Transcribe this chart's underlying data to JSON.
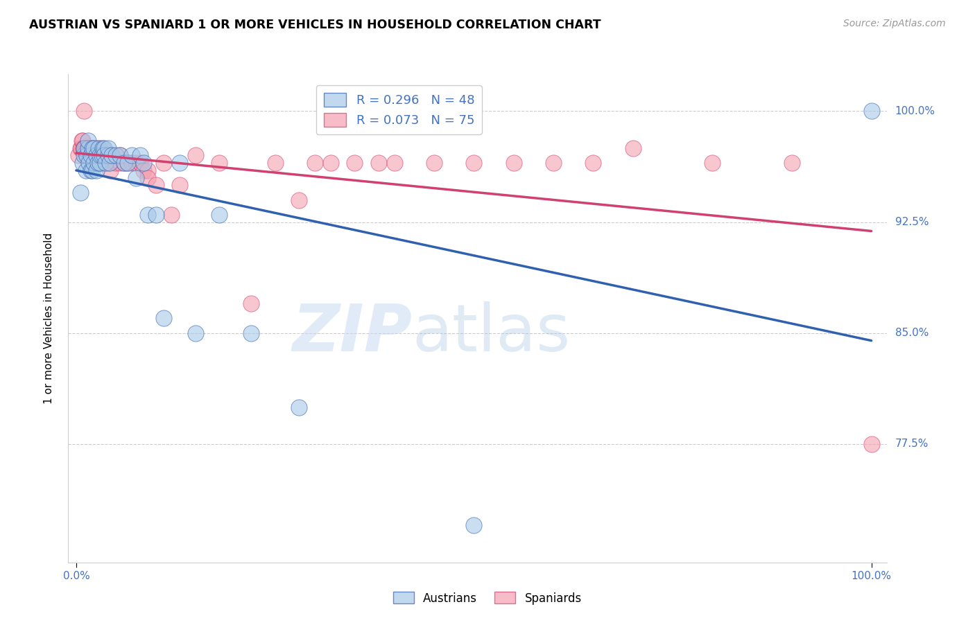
{
  "title": "AUSTRIAN VS SPANIARD 1 OR MORE VEHICLES IN HOUSEHOLD CORRELATION CHART",
  "source": "Source: ZipAtlas.com",
  "ylabel": "1 or more Vehicles in Household",
  "ytick_labels": [
    "100.0%",
    "92.5%",
    "85.0%",
    "77.5%"
  ],
  "ytick_values": [
    1.0,
    0.925,
    0.85,
    0.775
  ],
  "xlim": [
    0.0,
    1.0
  ],
  "ylim": [
    0.695,
    1.025
  ],
  "legend_blue_label": "R = 0.296   N = 48",
  "legend_pink_label": "R = 0.073   N = 75",
  "blue_color": "#a8c8e8",
  "pink_color": "#f4a0b0",
  "blue_line_color": "#3060b0",
  "pink_line_color": "#d04070",
  "background_color": "#ffffff",
  "watermark_zip": "ZIP",
  "watermark_atlas": "atlas",
  "blue_R": 0.296,
  "pink_R": 0.073,
  "blue_N": 48,
  "pink_N": 75,
  "austrians_x": [
    0.005,
    0.008,
    0.01,
    0.01,
    0.012,
    0.013,
    0.015,
    0.015,
    0.016,
    0.018,
    0.018,
    0.02,
    0.02,
    0.022,
    0.022,
    0.025,
    0.025,
    0.027,
    0.028,
    0.03,
    0.03,
    0.032,
    0.033,
    0.035,
    0.035,
    0.037,
    0.04,
    0.04,
    0.042,
    0.045,
    0.05,
    0.055,
    0.06,
    0.065,
    0.07,
    0.075,
    0.08,
    0.085,
    0.09,
    0.1,
    0.11,
    0.13,
    0.15,
    0.18,
    0.22,
    0.28,
    0.5,
    1.0
  ],
  "austrians_y": [
    0.945,
    0.965,
    0.97,
    0.975,
    0.96,
    0.97,
    0.975,
    0.98,
    0.965,
    0.97,
    0.96,
    0.975,
    0.96,
    0.975,
    0.965,
    0.97,
    0.96,
    0.965,
    0.975,
    0.965,
    0.97,
    0.97,
    0.975,
    0.975,
    0.97,
    0.965,
    0.97,
    0.975,
    0.965,
    0.97,
    0.97,
    0.97,
    0.965,
    0.965,
    0.97,
    0.955,
    0.97,
    0.965,
    0.93,
    0.93,
    0.86,
    0.965,
    0.85,
    0.93,
    0.85,
    0.8,
    0.72,
    1.0
  ],
  "spaniards_x": [
    0.003,
    0.005,
    0.006,
    0.007,
    0.008,
    0.009,
    0.01,
    0.01,
    0.011,
    0.012,
    0.012,
    0.013,
    0.014,
    0.015,
    0.016,
    0.016,
    0.017,
    0.018,
    0.018,
    0.019,
    0.02,
    0.02,
    0.022,
    0.022,
    0.023,
    0.024,
    0.025,
    0.025,
    0.027,
    0.028,
    0.03,
    0.03,
    0.032,
    0.033,
    0.035,
    0.037,
    0.04,
    0.04,
    0.042,
    0.043,
    0.045,
    0.05,
    0.055,
    0.055,
    0.06,
    0.065,
    0.07,
    0.075,
    0.08,
    0.085,
    0.09,
    0.09,
    0.1,
    0.11,
    0.12,
    0.13,
    0.15,
    0.18,
    0.22,
    0.25,
    0.28,
    0.3,
    0.32,
    0.35,
    0.38,
    0.4,
    0.45,
    0.5,
    0.55,
    0.6,
    0.65,
    0.7,
    0.8,
    0.9,
    1.0
  ],
  "spaniards_y": [
    0.97,
    0.975,
    0.975,
    0.98,
    0.98,
    0.975,
    1.0,
    0.975,
    0.975,
    0.975,
    0.97,
    0.97,
    0.975,
    0.975,
    0.975,
    0.97,
    0.975,
    0.975,
    0.97,
    0.97,
    0.975,
    0.97,
    0.975,
    0.97,
    0.965,
    0.97,
    0.975,
    0.965,
    0.97,
    0.965,
    0.975,
    0.97,
    0.965,
    0.97,
    0.965,
    0.97,
    0.97,
    0.965,
    0.97,
    0.96,
    0.97,
    0.965,
    0.97,
    0.965,
    0.965,
    0.965,
    0.965,
    0.965,
    0.965,
    0.96,
    0.96,
    0.955,
    0.95,
    0.965,
    0.93,
    0.95,
    0.97,
    0.965,
    0.87,
    0.965,
    0.94,
    0.965,
    0.965,
    0.965,
    0.965,
    0.965,
    0.965,
    0.965,
    0.965,
    0.965,
    0.965,
    0.975,
    0.965,
    0.965,
    0.775
  ]
}
